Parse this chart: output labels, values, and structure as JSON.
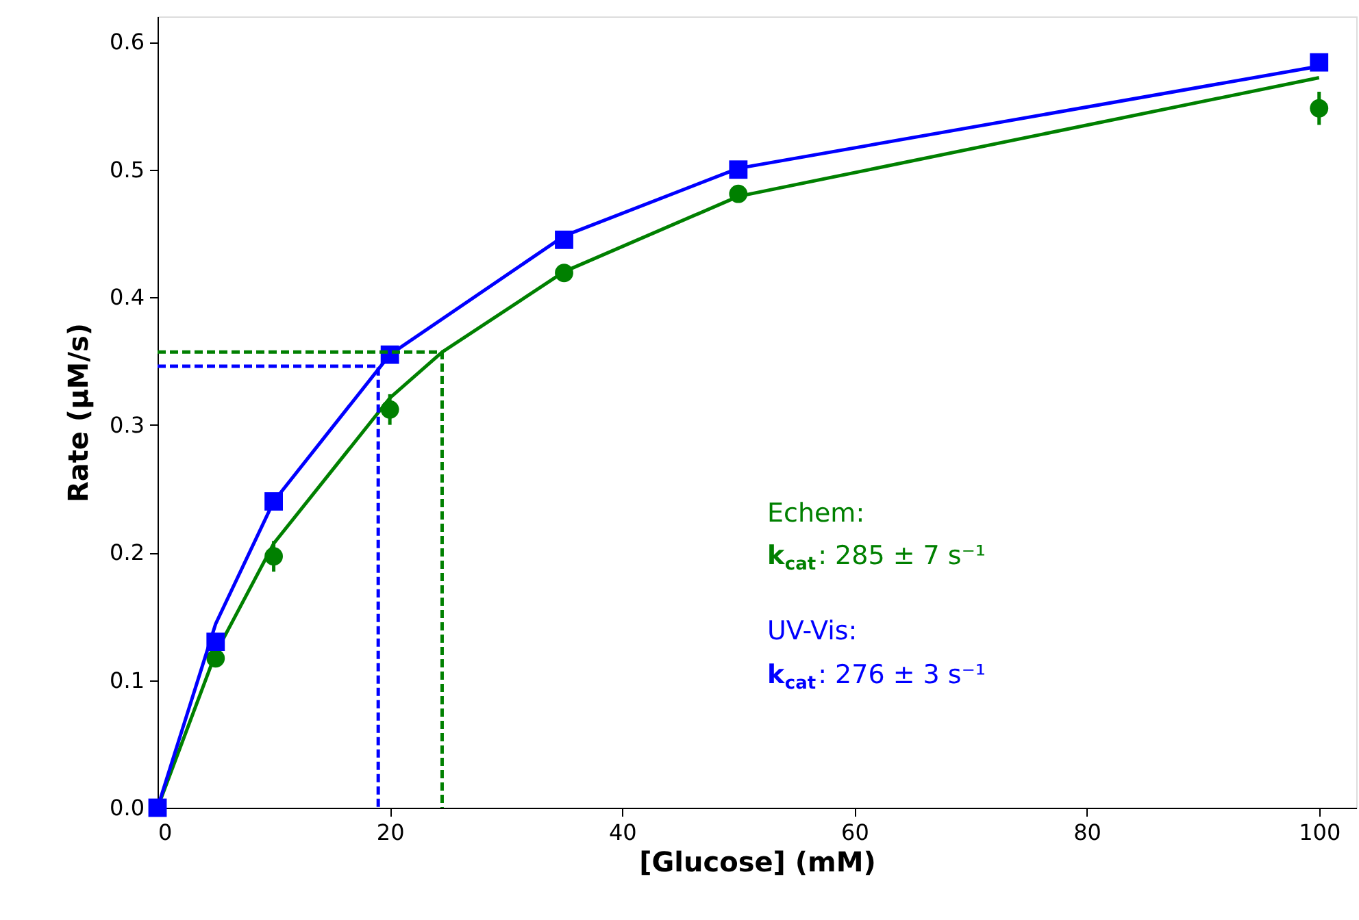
{
  "chart_data": {
    "type": "scatter",
    "xlabel": "[Glucose] (mM)",
    "ylabel": "Rate (µM/s)",
    "xlim": [
      0,
      103.2
    ],
    "ylim": [
      0,
      0.62
    ],
    "xticks": [
      0,
      20,
      40,
      60,
      80,
      100
    ],
    "yticks": [
      {
        "value": 0,
        "label": "0.0"
      },
      0.1,
      0.2,
      0.3,
      0.4,
      0.5,
      0.6
    ],
    "grid": false,
    "series": [
      {
        "type": "line",
        "color": "#008000",
        "x": [
          0,
          5,
          10,
          20,
          24.5,
          35,
          50,
          100
        ],
        "values": [
          0,
          0.121,
          0.207,
          0.321,
          0.357,
          0.42,
          0.479,
          0.572
        ],
        "marker": "none",
        "line_style": "solid"
      },
      {
        "color": "#008000",
        "x": [
          5,
          10,
          20,
          35,
          50,
          100
        ],
        "values": [
          0.117,
          0.197,
          0.312,
          0.419,
          0.481,
          0.548
        ],
        "errors": [
          0.005,
          0.012,
          0.012,
          0.005,
          0.005,
          0.013
        ],
        "marker": "circle"
      },
      {
        "type": "line",
        "color": "#0000ff",
        "x": [
          0,
          5,
          10,
          20,
          35,
          50,
          100
        ],
        "values": [
          0,
          0.144,
          0.24,
          0.355,
          0.448,
          0.501,
          0.581
        ],
        "marker": "none",
        "line_style": "solid"
      },
      {
        "color": "#0000ff",
        "x": [
          0,
          5,
          10,
          20,
          35,
          50,
          100
        ],
        "values": [
          0,
          0.13,
          0.24,
          0.355,
          0.445,
          0.5,
          0.584
        ],
        "marker": "square"
      },
      {
        "type": "line",
        "color": "#008000",
        "x": [
          0,
          24.5,
          24.5
        ],
        "values": [
          0.357,
          0.357,
          0
        ],
        "marker": "none",
        "line_style": "dashed"
      },
      {
        "type": "line",
        "color": "#0000ff",
        "x": [
          0,
          19,
          19
        ],
        "values": [
          0.346,
          0.346,
          0
        ],
        "marker": "none",
        "line_style": "dashed"
      }
    ],
    "annotations": [
      "Echem:",
      "k$_{cat}$: 285 ± 7 s⁻¹",
      "UV-Vis:",
      "k$_{cat}$: 276 ± 3 s⁻¹"
    ]
  }
}
